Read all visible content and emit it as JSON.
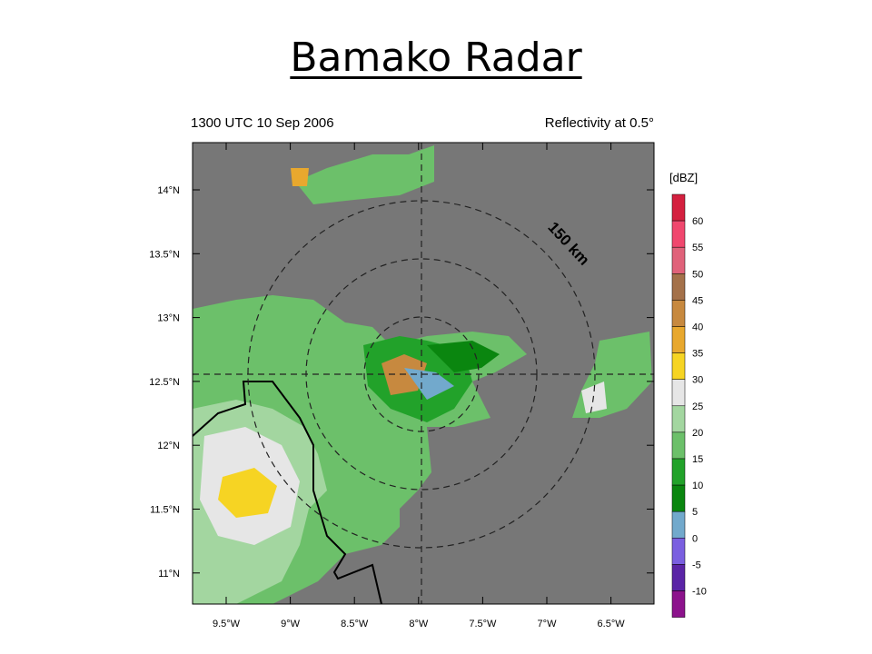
{
  "title": "Bamako Radar",
  "map": {
    "time_label": "1300 UTC 10 Sep 2006",
    "product_label": "Reflectivity at 0.5°",
    "range_label": "150 km",
    "x_ticks": [
      "9.5°W",
      "9°W",
      "8.5°W",
      "8°W",
      "7.5°W",
      "7°W",
      "6.5°W"
    ],
    "y_ticks": [
      "14°N",
      "13.5°N",
      "13°N",
      "12.5°N",
      "12°N",
      "11.5°N",
      "11°N"
    ]
  },
  "colorbar": {
    "unit_label": "[dBZ]",
    "labels": [
      "60",
      "55",
      "50",
      "45",
      "40",
      "35",
      "30",
      "25",
      "20",
      "15",
      "10",
      "5",
      "0",
      "-5",
      "-10"
    ],
    "colors": [
      "#d4203f",
      "#f0476e",
      "#e0627a",
      "#a4714a",
      "#c7893f",
      "#e8a82e",
      "#f6d423",
      "#e6e6e6",
      "#a3d6a0",
      "#6cc06a",
      "#22a22a",
      "#0a860f",
      "#72a9cc",
      "#7a5fe0",
      "#5a24a6",
      "#8c138c"
    ]
  }
}
